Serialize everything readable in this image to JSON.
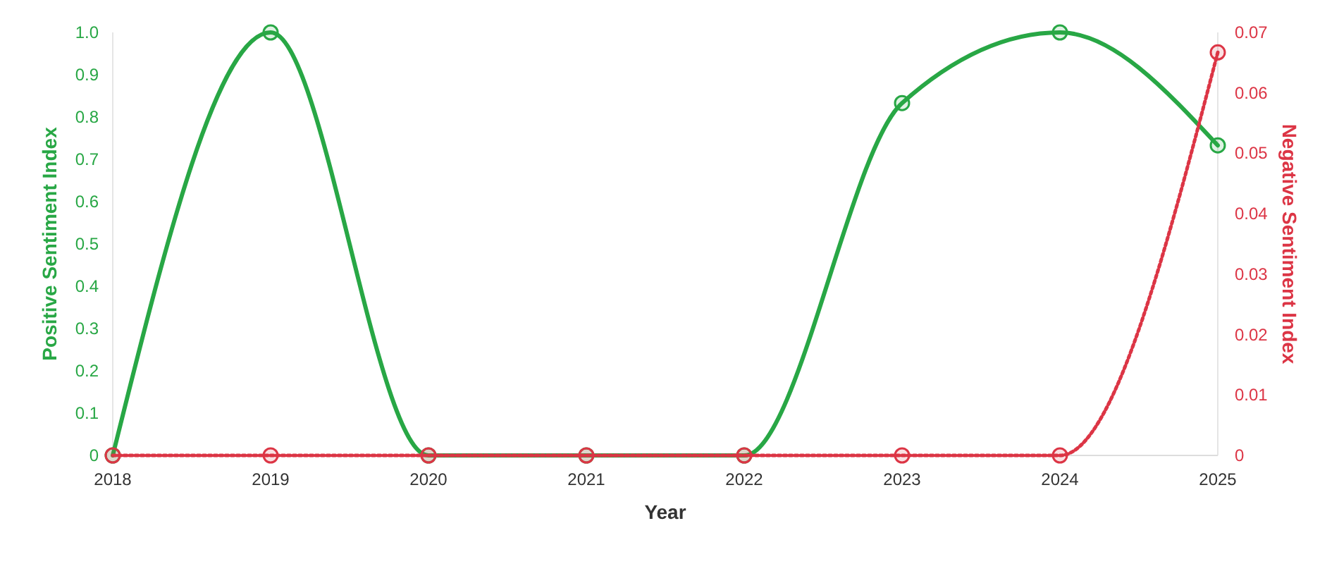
{
  "chart_data": {
    "type": "line",
    "xlabel": "Year",
    "ylabel": "Positive Sentiment Index",
    "y2label": "Negative Sentiment Index",
    "x": [
      2018,
      2019,
      2020,
      2021,
      2022,
      2023,
      2024,
      2025
    ],
    "xlim": [
      2018,
      2025
    ],
    "xticks": [
      2018,
      2019,
      2020,
      2021,
      2022,
      2023,
      2024,
      2025
    ],
    "ylim": [
      0,
      1
    ],
    "yticks": [
      0,
      0.1,
      0.2,
      0.3,
      0.4,
      0.5,
      0.6,
      0.7,
      0.8,
      0.9,
      {
        "value": 1,
        "label": "1.0"
      }
    ],
    "y2lim": [
      0,
      0.07
    ],
    "y2ticks": [
      0,
      0.01,
      0.02,
      0.03,
      0.04,
      0.05,
      0.06,
      0.07
    ],
    "marker": "circle",
    "grid": false,
    "series": [
      {
        "color": "#28a745",
        "values": [
          0,
          1,
          0,
          0,
          0,
          0.833,
          1,
          0.733
        ],
        "line_style": "solid"
      },
      {
        "color": "#dc3545",
        "values": [
          0,
          0,
          0,
          0,
          0,
          0,
          0,
          0.0667
        ],
        "axis": "y2",
        "line_style": "dotted"
      }
    ]
  }
}
